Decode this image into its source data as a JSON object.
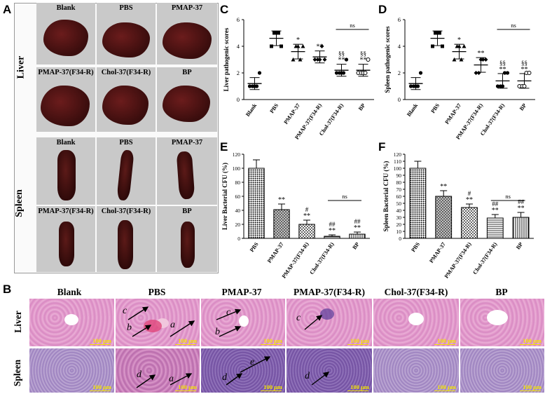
{
  "panel_letters": {
    "A": "A",
    "B": "B",
    "C": "C",
    "D": "D",
    "E": "E",
    "F": "F"
  },
  "panel_a": {
    "liver_label": "Liver",
    "spleen_label": "Spleen",
    "liver_row1": [
      "Blank",
      "PBS",
      "PMAP-37"
    ],
    "liver_row2": [
      "PMAP-37(F34-R)",
      "Chol-37(F34-R)",
      "BP"
    ],
    "spleen_row1": [
      "Blank",
      "PBS",
      "PMAP-37"
    ],
    "spleen_row2": [
      "PMAP-37(F34-R)",
      "Chol-37(F34-R)",
      "BP"
    ]
  },
  "panel_b": {
    "columns": [
      "Blank",
      "PBS",
      "PMAP-37",
      "PMAP-37(F34-R)",
      "Chol-37(F34-R)",
      "BP"
    ],
    "row_labels": [
      "Liver",
      "Spleen"
    ],
    "scalebar": "100 μm",
    "arrow_letters": {
      "a": "a",
      "b": "b",
      "c": "c",
      "d": "d",
      "e": "e"
    }
  },
  "chart_data": [
    {
      "id": "C",
      "type": "scatter",
      "ylabel": "Liver pathogenic scores",
      "ylim": [
        0,
        6
      ],
      "yticks": [
        "0",
        "2",
        "4",
        "6"
      ],
      "categories": [
        "Blank",
        "PBS",
        "PMAP-37",
        "PMAP-37(F34-R)",
        "Chol-37(F34-R)",
        "BP"
      ],
      "means": [
        1.2,
        4.6,
        3.6,
        3.2,
        2.2,
        2.2
      ],
      "sd": [
        0.45,
        0.55,
        0.55,
        0.45,
        0.45,
        0.45
      ],
      "points": [
        [
          1,
          1,
          1,
          1,
          2
        ],
        [
          4,
          5,
          5,
          5,
          4
        ],
        [
          3,
          4,
          4,
          3,
          4
        ],
        [
          3,
          3,
          3,
          4,
          3
        ],
        [
          2,
          2,
          2,
          2,
          3
        ],
        [
          2,
          2,
          2,
          2,
          3
        ]
      ],
      "markers": [
        "circle",
        "square",
        "triangle",
        "diamond",
        "circle",
        "circle-open"
      ],
      "sig_upper": [
        "",
        "",
        "*",
        "**",
        "§§",
        "§§"
      ],
      "sig_lower": [
        "",
        "",
        "",
        "",
        "**",
        "**"
      ],
      "ns_label": "ns"
    },
    {
      "id": "D",
      "type": "scatter",
      "ylabel": "Spleen pathogenic scores",
      "ylim": [
        0,
        6
      ],
      "yticks": [
        "0",
        "2",
        "4",
        "6"
      ],
      "categories": [
        "Blank",
        "PBS",
        "PMAP-37",
        "PMAP-37(F34-R)",
        "Chol-37(F34-R)",
        "BP"
      ],
      "means": [
        1.2,
        4.6,
        3.6,
        2.6,
        1.4,
        1.4
      ],
      "sd": [
        0.45,
        0.55,
        0.55,
        0.55,
        0.55,
        0.55
      ],
      "points": [
        [
          1,
          1,
          1,
          1,
          2
        ],
        [
          4,
          5,
          5,
          5,
          4
        ],
        [
          3,
          4,
          4,
          3,
          4
        ],
        [
          2,
          2,
          3,
          3,
          3
        ],
        [
          1,
          1,
          1,
          2,
          2
        ],
        [
          1,
          1,
          1,
          2,
          2
        ]
      ],
      "markers": [
        "circle",
        "square",
        "triangle",
        "diamond",
        "circle",
        "circle-open"
      ],
      "sig_upper": [
        "",
        "",
        "*",
        "**",
        "§§",
        "§§"
      ],
      "sig_lower": [
        "",
        "",
        "",
        "",
        "**",
        "**"
      ],
      "ns_label": "ns"
    },
    {
      "id": "E",
      "type": "bar",
      "ylabel": "Liver Bacterial CFU  (%)",
      "ylim": [
        0,
        120
      ],
      "yticks": [
        "0",
        "20",
        "40",
        "60",
        "80",
        "100",
        "120"
      ],
      "categories": [
        "PBS",
        "PMAP-37",
        "PMAP-37(F34-R)",
        "Chol-37(F34-R)",
        "BP"
      ],
      "values": [
        100,
        41,
        20,
        3,
        6
      ],
      "sd": [
        12,
        8,
        6,
        2,
        3
      ],
      "sig_upper": [
        "",
        "",
        "#",
        "##",
        "##"
      ],
      "sig_lower": [
        "",
        "**",
        "**",
        "**",
        "**"
      ],
      "ns_label": "ns"
    },
    {
      "id": "F",
      "type": "bar",
      "ylabel": "Spleen Bacterial CFU  (%)",
      "ylim": [
        0,
        120
      ],
      "yticks": [
        "0",
        "10",
        "20",
        "30",
        "40",
        "50",
        "60",
        "70",
        "80",
        "90",
        "100",
        "110",
        "120"
      ],
      "categories": [
        "PBS",
        "PMAP-37",
        "PMAP-37(F34-R)",
        "Chol-37(F34-R)",
        "BP"
      ],
      "values": [
        100,
        60,
        44,
        29,
        30
      ],
      "sd": [
        10,
        8,
        5,
        5,
        7
      ],
      "sig_upper": [
        "",
        "",
        "#",
        "##",
        "##"
      ],
      "sig_lower": [
        "",
        "**",
        "**",
        "**",
        "**"
      ],
      "ns_label": "ns"
    }
  ]
}
